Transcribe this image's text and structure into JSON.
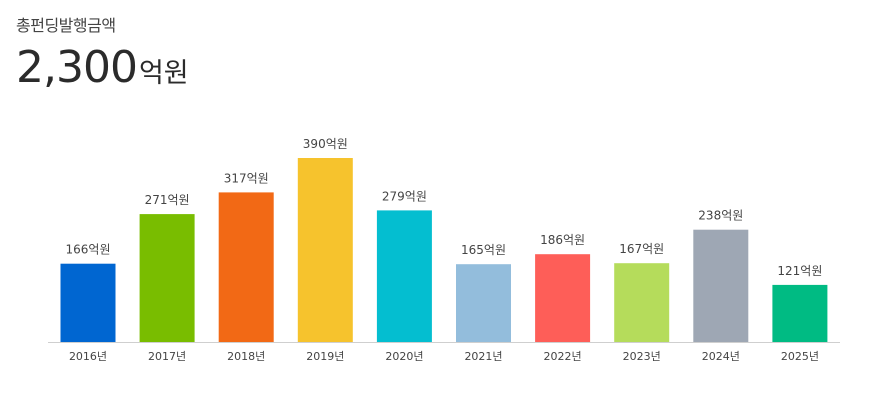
{
  "summary": {
    "label": "총펀딩발행금액",
    "total": "2,300",
    "unit": "억원"
  },
  "chart_data": {
    "type": "bar",
    "categories": [
      "2016년",
      "2017년",
      "2018년",
      "2019년",
      "2020년",
      "2021년",
      "2022년",
      "2023년",
      "2024년",
      "2025년"
    ],
    "values": [
      166,
      271,
      317,
      390,
      279,
      165,
      186,
      167,
      238,
      121
    ],
    "value_labels": [
      "166억원",
      "271억원",
      "317억원",
      "390억원",
      "279억원",
      "165억원",
      "186억원",
      "167억원",
      "238억원",
      "121억원"
    ],
    "colors": [
      "#0066d1",
      "#79bd00",
      "#f26915",
      "#f6c32d",
      "#04bed0",
      "#93bddc",
      "#fe5e58",
      "#b5dc5b",
      "#9ea7b4",
      "#00bb83"
    ],
    "ylim": [
      0,
      390
    ],
    "grid": false,
    "legend": "none"
  }
}
